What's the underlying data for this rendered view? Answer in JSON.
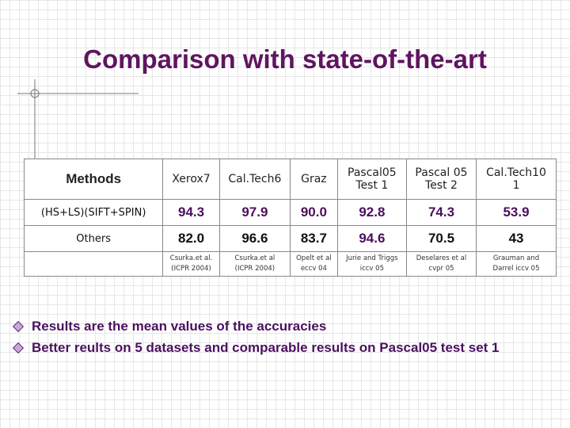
{
  "header": {
    "title": "Comparison with state-of-the-art"
  },
  "table": {
    "header": [
      [
        "Methods"
      ],
      [
        "Xerox7"
      ],
      [
        "Cal.Tech6"
      ],
      [
        "Graz"
      ],
      [
        "Pascal05",
        "Test 1"
      ],
      [
        "Pascal 05",
        "Test 2"
      ],
      [
        "Cal.Tech10",
        "1"
      ]
    ],
    "rows": [
      {
        "cells": [
          "(HS+LS)(SIFT+SPIN)",
          "94.3",
          "97.9",
          "90.0",
          "92.8",
          "74.3",
          "53.9"
        ],
        "highlight": [
          1,
          2,
          3,
          4,
          5,
          6
        ]
      },
      {
        "cells": [
          "Others",
          "82.0",
          "96.6",
          "83.7",
          "94.6",
          "70.5",
          "43"
        ],
        "highlight": [
          4
        ]
      }
    ],
    "citations": [
      [],
      [
        "Csurka.et al.",
        "(ICPR 2004)"
      ],
      [
        "Csurka.et al",
        "(ICPR 2004)"
      ],
      [
        "Opelt et al",
        "eccv 04"
      ],
      [
        "Jurie and Triggs",
        "iccv 05"
      ],
      [
        "Deselares et al",
        "cvpr 05"
      ],
      [
        "Grauman and",
        "Darrel iccv 05"
      ]
    ]
  },
  "bullets": [
    "Results are the mean values of the accuracies",
    "Better reults on 5 datasets and  comparable results on Pascal05 test set 1"
  ]
}
